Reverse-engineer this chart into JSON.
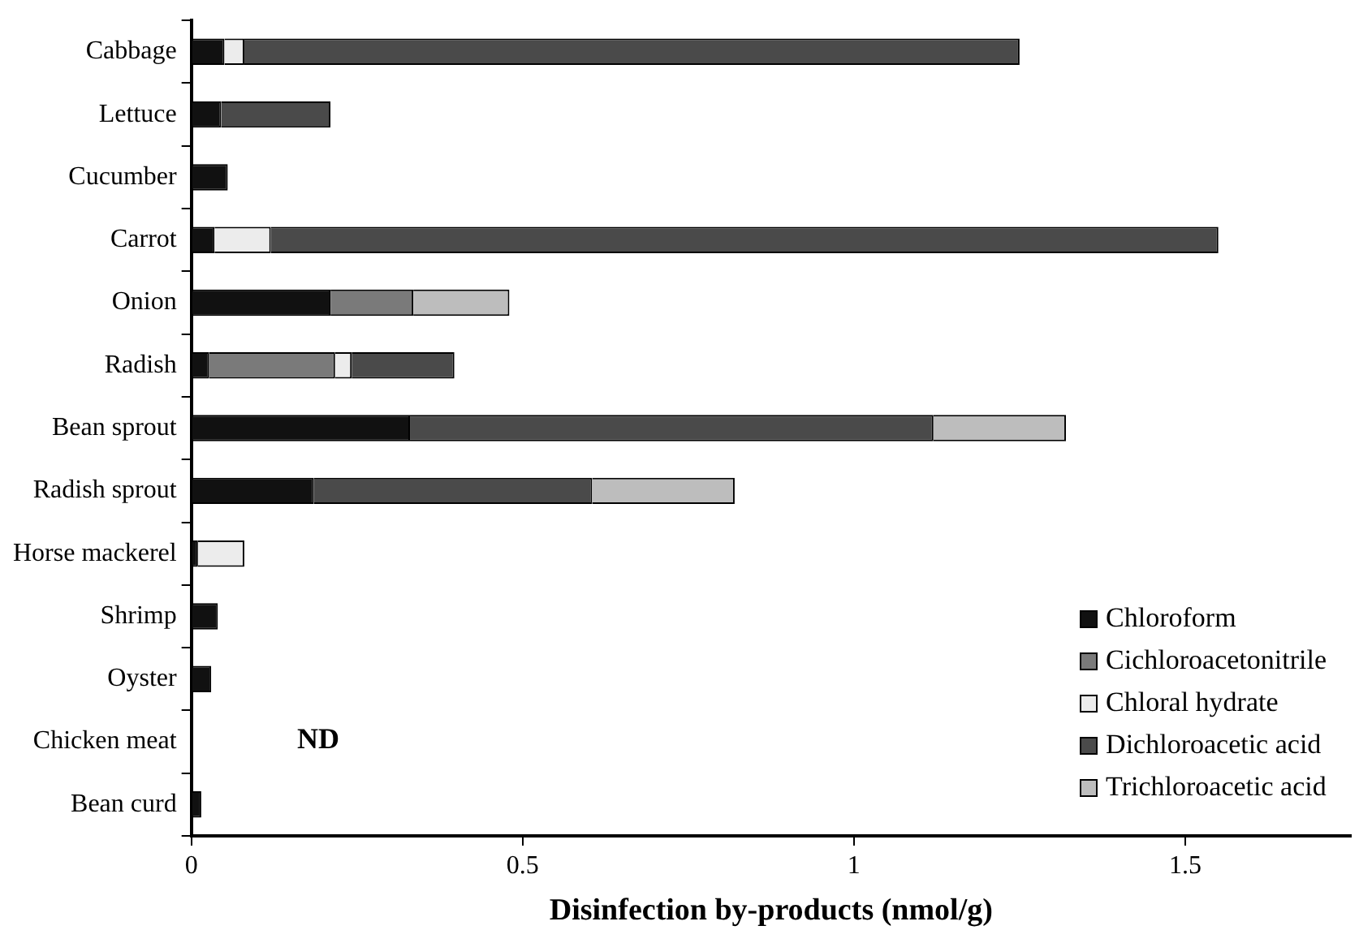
{
  "chart_data": {
    "type": "bar",
    "orientation": "horizontal",
    "stacked": true,
    "xlabel": "Disinfection by-products (nmol/g)",
    "categories": [
      "Cabbage",
      "Lettuce",
      "Cucumber",
      "Carrot",
      "Onion",
      "Radish",
      "Bean sprout",
      "Radish sprout",
      "Horse mackerel",
      "Shrimp",
      "Oyster",
      "Chicken meat",
      "Bean curd"
    ],
    "series": [
      {
        "name": "Chloroform",
        "color": "#111111",
        "values": [
          0.05,
          0.045,
          0.055,
          0.035,
          0.21,
          0.027,
          0.33,
          0.185,
          0.01,
          0.04,
          0.03,
          null,
          0.015
        ]
      },
      {
        "name": "Cichloroacetonitrile",
        "color": "#7a7a7a",
        "values": [
          null,
          null,
          null,
          null,
          0.125,
          0.19,
          null,
          null,
          null,
          null,
          null,
          null,
          null
        ]
      },
      {
        "name": "Chloral hydrate",
        "color": "#ececec",
        "values": [
          0.03,
          null,
          null,
          0.085,
          null,
          0.025,
          null,
          null,
          0.07,
          null,
          null,
          null,
          null
        ]
      },
      {
        "name": "Dichloroacetic acid",
        "color": "#4a4a4a",
        "values": [
          1.17,
          0.165,
          null,
          1.43,
          null,
          0.155,
          0.79,
          0.42,
          null,
          null,
          null,
          null,
          null
        ]
      },
      {
        "name": "Trichloroacetic acid",
        "color": "#bdbdbd",
        "values": [
          null,
          null,
          null,
          null,
          0.145,
          null,
          0.2,
          0.215,
          null,
          null,
          null,
          null,
          null
        ]
      }
    ],
    "xlim": [
      0,
      1.75
    ],
    "xticks": [
      0,
      0.5,
      1,
      1.5
    ],
    "grid": false,
    "legend": "bottom right",
    "annotations": [
      "ND"
    ]
  }
}
